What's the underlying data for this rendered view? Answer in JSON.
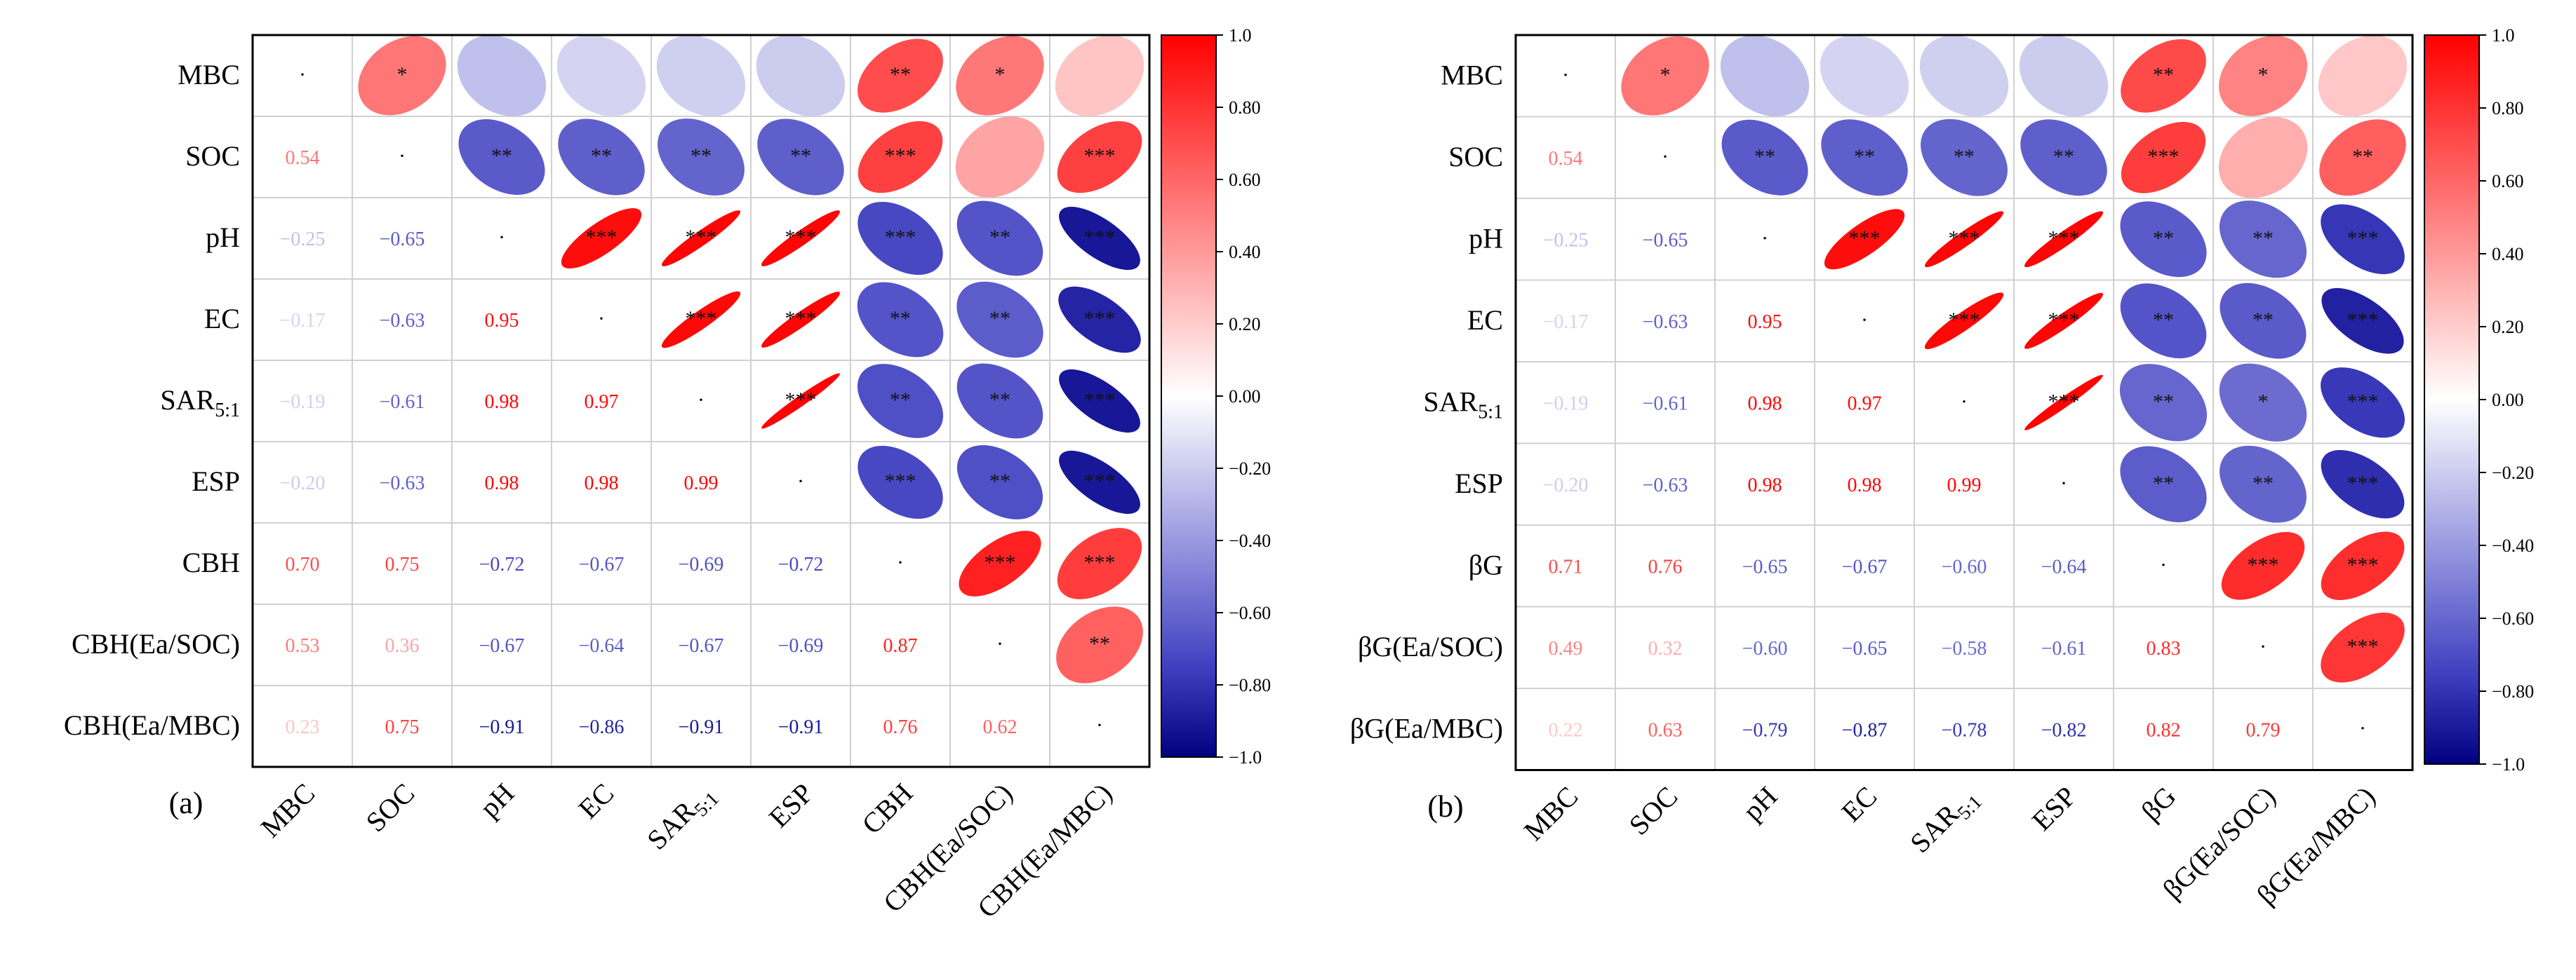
{
  "colors": {
    "positive": "#ff0000",
    "negative": "#000080",
    "mid_negative": "#4040c0",
    "neutral": "#ffffff",
    "grid": "#d0d0d0",
    "border": "#000000"
  },
  "chart_data": [
    {
      "type": "heatmap",
      "subtype": "correlation-ellipse-matrix",
      "panel_label": "(a)",
      "variables": [
        "MBC",
        "SOC",
        "pH",
        "EC",
        "SAR5:1",
        "ESP",
        "CBH",
        "CBH(Ea/SOC)",
        "CBH(Ea/MBC)"
      ],
      "row_labels": [
        "MBC",
        "SOC",
        "pH",
        "EC",
        "SAR",
        "ESP",
        "CBH",
        "CBH(Ea/SOC)",
        "CBH(Ea/MBC)"
      ],
      "row_label_subscripts": [
        "",
        "",
        "",
        "",
        "5:1",
        "",
        "",
        "",
        ""
      ],
      "col_labels": [
        "MBC",
        "SOC",
        "pH",
        "EC",
        "SAR",
        "ESP",
        "CBH",
        "CBH(Ea/SOC)",
        "CBH(Ea/MBC)"
      ],
      "col_label_subscripts": [
        "",
        "",
        "",
        "",
        "5:1",
        "",
        "",
        "",
        ""
      ],
      "lower_triangle": [
        [
          "0.54"
        ],
        [
          "−0.25",
          "−0.65"
        ],
        [
          "−0.17",
          "−0.63",
          "0.95"
        ],
        [
          "−0.19",
          "−0.61",
          "0.98",
          "0.97"
        ],
        [
          "−0.20",
          "−0.63",
          "0.98",
          "0.98",
          "0.99"
        ],
        [
          "0.70",
          "0.75",
          "−0.72",
          "−0.67",
          "−0.69",
          "−0.72"
        ],
        [
          "0.53",
          "0.36",
          "−0.67",
          "−0.64",
          "−0.67",
          "−0.69",
          "0.87"
        ],
        [
          "0.23",
          "0.75",
          "−0.91",
          "−0.86",
          "−0.91",
          "−0.91",
          "0.76",
          "0.62"
        ]
      ],
      "significance_upper": [
        [
          "*",
          "",
          "",
          "",
          "",
          "**",
          "*",
          ""
        ],
        [
          "**",
          "**",
          "**",
          "**",
          "***",
          "",
          "***"
        ],
        [
          "***",
          "***",
          "***",
          "***",
          "**",
          "***"
        ],
        [
          "***",
          "***",
          "**",
          "**",
          "***"
        ],
        [
          "***",
          "**",
          "**",
          "***"
        ],
        [
          "***",
          "**",
          "***"
        ],
        [
          "***",
          "***"
        ],
        [
          "**"
        ]
      ],
      "diagonal_mark": "·",
      "colorbar": {
        "min": -1.0,
        "max": 1.0,
        "tick_labels": [
          "1.0",
          "0.80",
          "0.60",
          "0.40",
          "0.20",
          "0.00",
          "−0.20",
          "−0.40",
          "−0.60",
          "−0.80",
          "−1.0"
        ]
      }
    },
    {
      "type": "heatmap",
      "subtype": "correlation-ellipse-matrix",
      "panel_label": "(b)",
      "variables": [
        "MBC",
        "SOC",
        "pH",
        "EC",
        "SAR5:1",
        "ESP",
        "βG",
        "βG(Ea/SOC)",
        "βG(Ea/MBC)"
      ],
      "row_labels": [
        "MBC",
        "SOC",
        "pH",
        "EC",
        "SAR",
        "ESP",
        "βG",
        "βG(Ea/SOC)",
        "βG(Ea/MBC)"
      ],
      "row_label_subscripts": [
        "",
        "",
        "",
        "",
        "5:1",
        "",
        "",
        "",
        ""
      ],
      "col_labels": [
        "MBC",
        "SOC",
        "pH",
        "EC",
        "SAR",
        "ESP",
        "βG",
        "βG(Ea/SOC)",
        "βG(Ea/MBC)"
      ],
      "col_label_subscripts": [
        "",
        "",
        "",
        "",
        "5:1",
        "",
        "",
        "",
        ""
      ],
      "lower_triangle": [
        [
          "0.54"
        ],
        [
          "−0.25",
          "−0.65"
        ],
        [
          "−0.17",
          "−0.63",
          "0.95"
        ],
        [
          "−0.19",
          "−0.61",
          "0.98",
          "0.97"
        ],
        [
          "−0.20",
          "−0.63",
          "0.98",
          "0.98",
          "0.99"
        ],
        [
          "0.71",
          "0.76",
          "−0.65",
          "−0.67",
          "−0.60",
          "−0.64"
        ],
        [
          "0.49",
          "0.32",
          "−0.60",
          "−0.65",
          "−0.58",
          "−0.61",
          "0.83"
        ],
        [
          "0.22",
          "0.63",
          "−0.79",
          "−0.87",
          "−0.78",
          "−0.82",
          "0.82",
          "0.79"
        ]
      ],
      "significance_upper": [
        [
          "*",
          "",
          "",
          "",
          "",
          "**",
          "*",
          ""
        ],
        [
          "**",
          "**",
          "**",
          "**",
          "***",
          "",
          "**"
        ],
        [
          "***",
          "***",
          "***",
          "**",
          "**",
          "***"
        ],
        [
          "***",
          "***",
          "**",
          "**",
          "***"
        ],
        [
          "***",
          "**",
          "*",
          "***"
        ],
        [
          "**",
          "**",
          "***"
        ],
        [
          "***",
          "***"
        ],
        [
          "***"
        ]
      ],
      "diagonal_mark": "·",
      "colorbar": {
        "min": -1.0,
        "max": 1.0,
        "tick_labels": [
          "1.0",
          "0.80",
          "0.60",
          "0.40",
          "0.20",
          "0.00",
          "−0.20",
          "−0.40",
          "−0.60",
          "−0.80",
          "−1.0"
        ]
      }
    }
  ]
}
